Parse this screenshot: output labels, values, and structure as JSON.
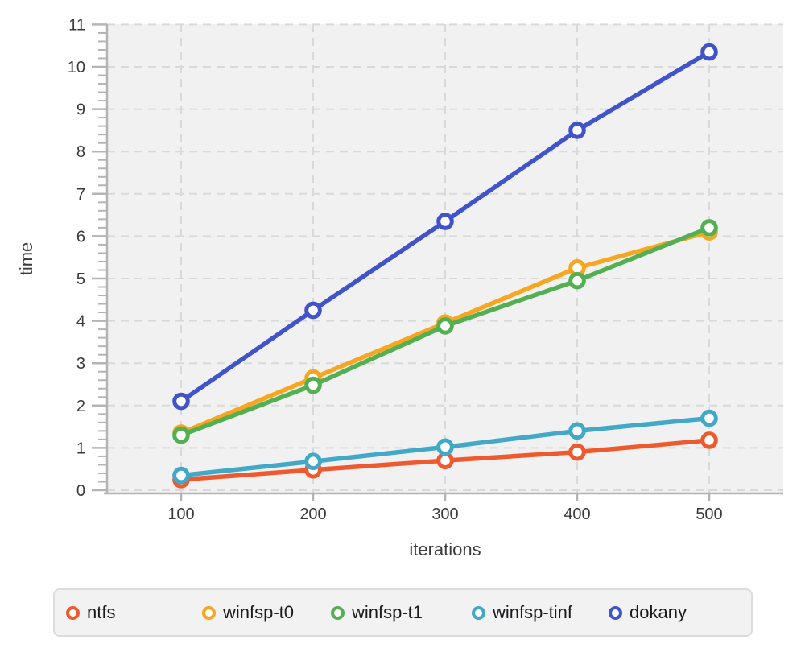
{
  "chart_data": {
    "type": "line",
    "title": "",
    "xlabel": "iterations",
    "ylabel": "time",
    "x": [
      100,
      200,
      300,
      400,
      500
    ],
    "series": [
      {
        "name": "ntfs",
        "color": "#ee5a2e",
        "values": [
          0.25,
          0.48,
          0.7,
          0.9,
          1.18
        ]
      },
      {
        "name": "winfsp-t0",
        "color": "#f8a51f",
        "values": [
          1.35,
          2.65,
          3.95,
          5.25,
          6.1
        ]
      },
      {
        "name": "winfsp-t1",
        "color": "#53b052",
        "values": [
          1.3,
          2.48,
          3.88,
          4.95,
          6.2
        ]
      },
      {
        "name": "winfsp-tinf",
        "color": "#42a8c8",
        "values": [
          0.35,
          0.68,
          1.02,
          1.4,
          1.7
        ]
      },
      {
        "name": "dokany",
        "color": "#4153cb",
        "values": [
          2.1,
          4.25,
          6.35,
          8.5,
          10.35
        ]
      }
    ],
    "xticks": [
      "100",
      "200",
      "300",
      "400",
      "500"
    ],
    "yticks": [
      "0",
      "1",
      "2",
      "3",
      "4",
      "5",
      "6",
      "7",
      "8",
      "9",
      "10",
      "11"
    ],
    "xlim": [
      42,
      556
    ],
    "ylim": [
      -0.08,
      11.05
    ],
    "grid": true,
    "marker_style": "open-circle",
    "legend_position": "bottom"
  },
  "axes": {
    "x_label": "iterations",
    "y_label": "time"
  },
  "legend": {
    "items": [
      {
        "label": "ntfs",
        "color": "#ee5a2e"
      },
      {
        "label": "winfsp-t0",
        "color": "#f8a51f"
      },
      {
        "label": "winfsp-t1",
        "color": "#53b052"
      },
      {
        "label": "winfsp-tinf",
        "color": "#42a8c8"
      },
      {
        "label": "dokany",
        "color": "#4153cb"
      }
    ]
  },
  "colors": {
    "plot_background": "#f1f1f1",
    "gridline": "#d9d9d9",
    "axis": "#b4b4b4",
    "tick_text": "#3a3a3a",
    "legend_background": "#f2f2f3",
    "legend_border": "#dcdcdc"
  }
}
